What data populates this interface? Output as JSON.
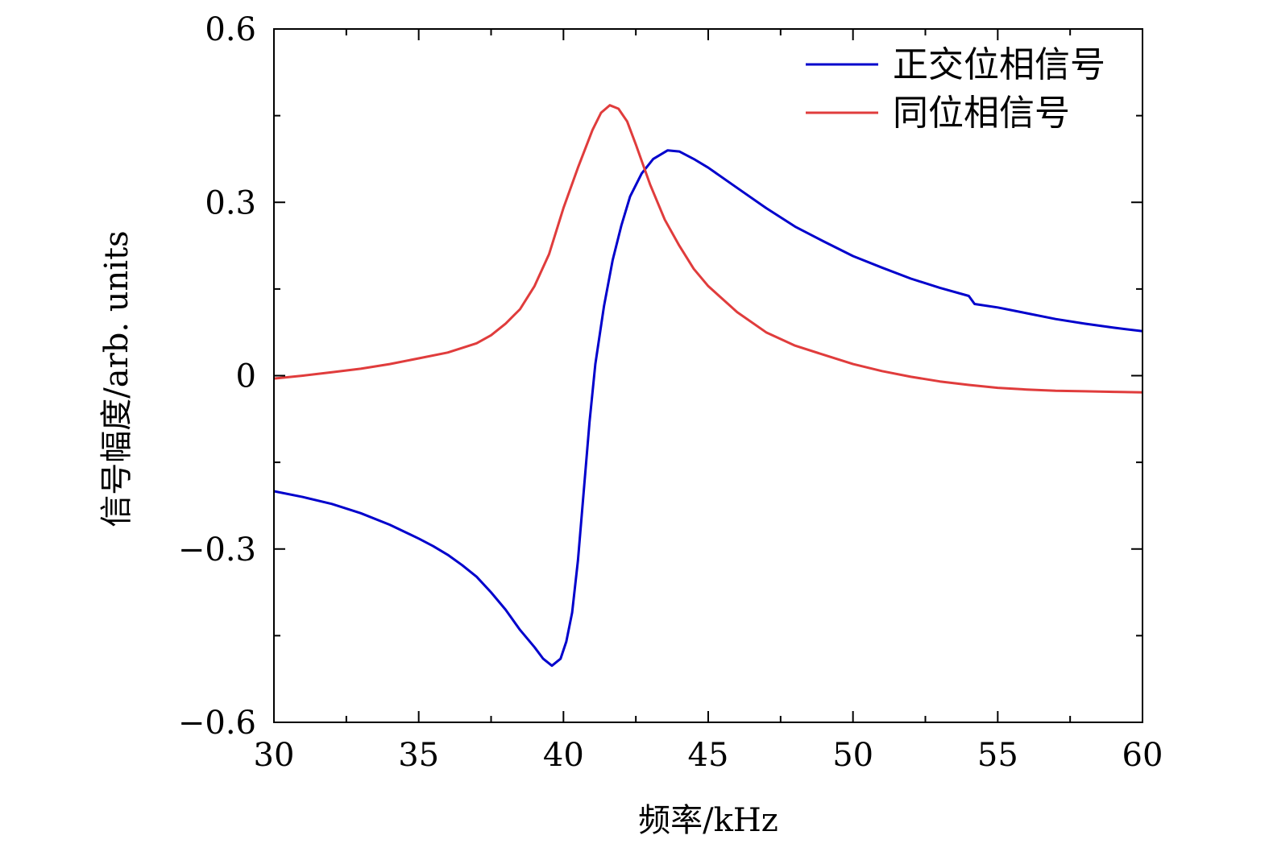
{
  "chart_data": {
    "type": "line",
    "title": "",
    "xlabel": "频率/kHz",
    "ylabel": "信号幅度/arb. units",
    "xlim": [
      30,
      60
    ],
    "ylim": [
      -0.6,
      0.6
    ],
    "x_ticks": [
      30,
      35,
      40,
      45,
      50,
      55,
      60
    ],
    "x_tick_labels": [
      "30",
      "35",
      "40",
      "45",
      "50",
      "55",
      "60"
    ],
    "y_ticks": [
      -0.6,
      -0.3,
      0,
      0.3,
      0.6
    ],
    "y_tick_labels": [
      "−0.6",
      "−0.3",
      "0",
      "0.3",
      "0.6"
    ],
    "grid": false,
    "legend_position": "top-right",
    "series": [
      {
        "name": "正交位相信号",
        "color": "#0000cc",
        "points": [
          [
            30,
            -0.2
          ],
          [
            31,
            -0.21
          ],
          [
            32,
            -0.222
          ],
          [
            33,
            -0.238
          ],
          [
            34,
            -0.258
          ],
          [
            35,
            -0.282
          ],
          [
            35.5,
            -0.295
          ],
          [
            36,
            -0.31
          ],
          [
            36.5,
            -0.328
          ],
          [
            37,
            -0.348
          ],
          [
            37.5,
            -0.375
          ],
          [
            38,
            -0.405
          ],
          [
            38.5,
            -0.44
          ],
          [
            39,
            -0.47
          ],
          [
            39.3,
            -0.49
          ],
          [
            39.6,
            -0.502
          ],
          [
            39.9,
            -0.49
          ],
          [
            40.1,
            -0.46
          ],
          [
            40.3,
            -0.41
          ],
          [
            40.5,
            -0.32
          ],
          [
            40.7,
            -0.2
          ],
          [
            40.9,
            -0.08
          ],
          [
            41.1,
            0.02
          ],
          [
            41.4,
            0.12
          ],
          [
            41.7,
            0.2
          ],
          [
            42,
            0.26
          ],
          [
            42.3,
            0.31
          ],
          [
            42.7,
            0.35
          ],
          [
            43.1,
            0.375
          ],
          [
            43.6,
            0.39
          ],
          [
            44,
            0.388
          ],
          [
            44.5,
            0.375
          ],
          [
            45,
            0.36
          ],
          [
            46,
            0.325
          ],
          [
            47,
            0.29
          ],
          [
            48,
            0.258
          ],
          [
            49,
            0.232
          ],
          [
            50,
            0.207
          ],
          [
            51,
            0.187
          ],
          [
            52,
            0.168
          ],
          [
            53,
            0.152
          ],
          [
            54,
            0.138
          ],
          [
            54.2,
            0.124
          ],
          [
            55,
            0.118
          ],
          [
            56,
            0.108
          ],
          [
            57,
            0.098
          ],
          [
            58,
            0.09
          ],
          [
            59,
            0.083
          ],
          [
            60,
            0.077
          ]
        ]
      },
      {
        "name": "同位相信号",
        "color": "#e03c3c",
        "points": [
          [
            30,
            -0.005
          ],
          [
            31,
            0.0
          ],
          [
            32,
            0.006
          ],
          [
            33,
            0.012
          ],
          [
            34,
            0.02
          ],
          [
            35,
            0.03
          ],
          [
            36,
            0.04
          ],
          [
            36.5,
            0.048
          ],
          [
            37,
            0.056
          ],
          [
            37.5,
            0.07
          ],
          [
            38,
            0.09
          ],
          [
            38.5,
            0.115
          ],
          [
            39,
            0.155
          ],
          [
            39.5,
            0.21
          ],
          [
            40,
            0.29
          ],
          [
            40.5,
            0.36
          ],
          [
            41,
            0.425
          ],
          [
            41.3,
            0.455
          ],
          [
            41.6,
            0.468
          ],
          [
            41.9,
            0.462
          ],
          [
            42.2,
            0.44
          ],
          [
            42.5,
            0.4
          ],
          [
            43,
            0.33
          ],
          [
            43.5,
            0.27
          ],
          [
            44,
            0.225
          ],
          [
            44.5,
            0.185
          ],
          [
            45,
            0.155
          ],
          [
            46,
            0.11
          ],
          [
            47,
            0.075
          ],
          [
            48,
            0.052
          ],
          [
            49,
            0.036
          ],
          [
            50,
            0.02
          ],
          [
            51,
            0.008
          ],
          [
            52,
            -0.002
          ],
          [
            53,
            -0.01
          ],
          [
            54,
            -0.016
          ],
          [
            55,
            -0.021
          ],
          [
            56,
            -0.024
          ],
          [
            57,
            -0.026
          ],
          [
            58,
            -0.027
          ],
          [
            59,
            -0.028
          ],
          [
            60,
            -0.029
          ]
        ]
      }
    ]
  }
}
